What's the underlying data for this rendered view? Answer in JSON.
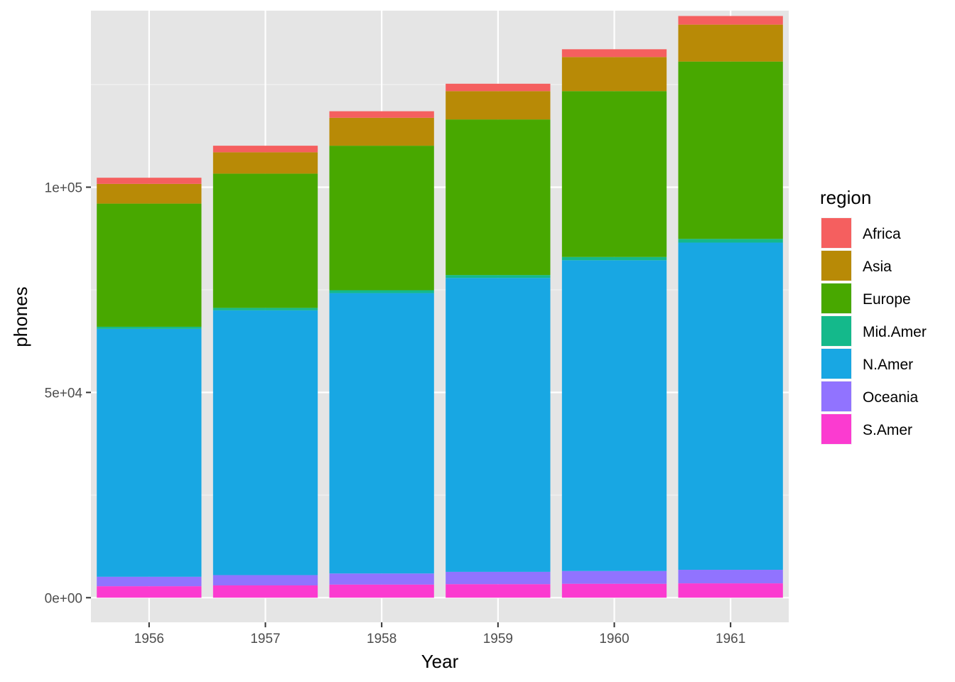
{
  "chart_data": {
    "type": "bar",
    "stacked": true,
    "title": "",
    "xlabel": "Year",
    "ylabel": "phones",
    "categories": [
      "1956",
      "1957",
      "1958",
      "1959",
      "1960",
      "1961"
    ],
    "ylim": [
      -6000,
      143000
    ],
    "y_ticks": [
      0,
      50000,
      100000
    ],
    "y_tick_labels": [
      "0e+00",
      "5e+04",
      "1e+05"
    ],
    "grid": true,
    "legend": {
      "title": "region",
      "position": "right"
    },
    "series": [
      {
        "name": "S.Amer",
        "color": "#FB3BD0",
        "values": [
          2800,
          3000,
          3200,
          3300,
          3400,
          3500
        ]
      },
      {
        "name": "Oceania",
        "color": "#9173FF",
        "values": [
          2300,
          2500,
          2700,
          3000,
          3100,
          3300
        ]
      },
      {
        "name": "N.Amer",
        "color": "#18A7E3",
        "values": [
          60400,
          64500,
          68300,
          71600,
          75700,
          79700
        ]
      },
      {
        "name": "Mid.Amer",
        "color": "#14B98B",
        "values": [
          500,
          600,
          700,
          700,
          800,
          900
        ]
      },
      {
        "name": "Europe",
        "color": "#48A800",
        "values": [
          30000,
          32700,
          35200,
          37900,
          40400,
          43200
        ]
      },
      {
        "name": "Asia",
        "color": "#B88A06",
        "values": [
          4800,
          5200,
          6800,
          6900,
          8300,
          9000
        ]
      },
      {
        "name": "Africa",
        "color": "#F55F5F",
        "values": [
          1500,
          1600,
          1600,
          1800,
          1900,
          2100
        ]
      }
    ]
  },
  "legend_order": [
    "Africa",
    "Asia",
    "Europe",
    "Mid.Amer",
    "N.Amer",
    "Oceania",
    "S.Amer"
  ],
  "colors": {
    "panel_background": "#E5E5E5",
    "grid_major": "#FFFFFF",
    "grid_minor": "#F2F2F2",
    "tick_text": "#4D4D4D"
  }
}
